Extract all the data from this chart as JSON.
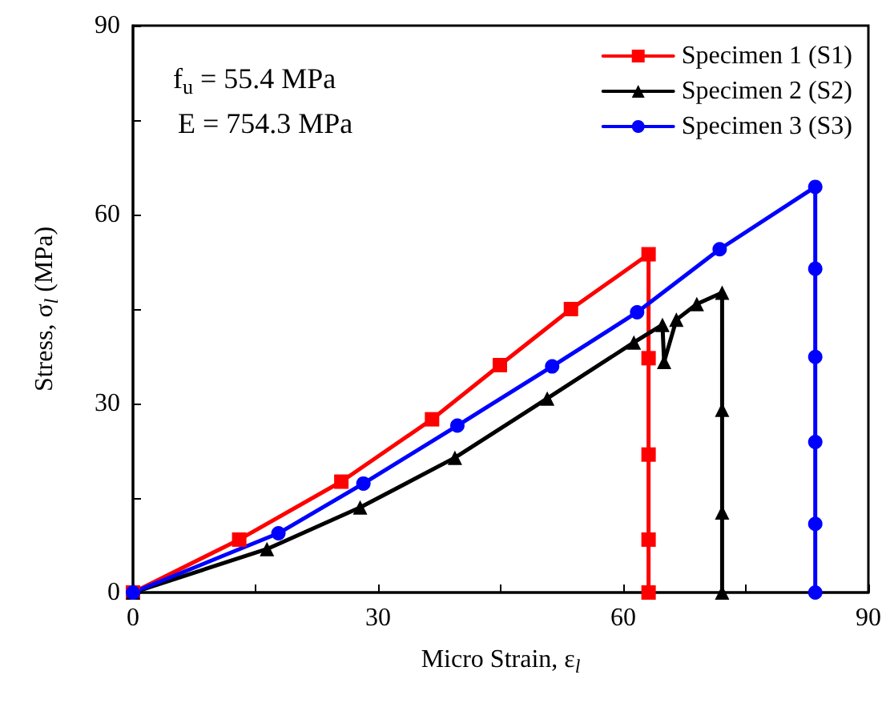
{
  "chart_data": {
    "type": "line",
    "xlabel": "Micro Strain, ε$_{l}$",
    "ylabel": "Stress, σ$_{l}$ (MPa)",
    "annotations": [
      "f$_{u}$ = 55.4 MPa",
      "E = 754.3 MPa"
    ],
    "xlim": [
      0,
      90
    ],
    "ylim": [
      0,
      90
    ],
    "xticks": [
      0,
      {
        "value": 15,
        "label": null
      },
      30,
      {
        "value": 45,
        "label": null
      },
      60,
      {
        "value": 75,
        "label": null
      },
      90
    ],
    "yticks": [
      0,
      {
        "value": 15,
        "label": null
      },
      30,
      {
        "value": 45,
        "label": null
      },
      60,
      {
        "value": 75,
        "label": null
      },
      90
    ],
    "grid": false,
    "legend": "top right",
    "line_style": "solid",
    "series": [
      {
        "name": "Specimen 1 (S1)",
        "color": "#ff0000",
        "marker": "square",
        "x": [
          0,
          13.0,
          25.5,
          36.6,
          44.9,
          53.6,
          63.1,
          63.1,
          63.1,
          63.1,
          63.1
        ],
        "values": [
          0,
          8.4,
          17.6,
          27.5,
          36.1,
          45.0,
          53.7,
          37.2,
          21.9,
          8.4,
          0
        ]
      },
      {
        "name": "Specimen 2 (S2)",
        "color": "#000000",
        "marker": "triangle",
        "x": [
          0,
          16.4,
          27.8,
          39.4,
          50.7,
          61.3,
          64.8,
          65.0,
          66.5,
          69.0,
          72.1,
          72.1,
          72.1,
          72.1
        ],
        "values": [
          0,
          6.9,
          13.5,
          21.4,
          30.8,
          39.7,
          42.5,
          36.6,
          43.3,
          45.8,
          47.6,
          29.0,
          12.7,
          0
        ]
      },
      {
        "name": "Specimen 3 (S3)",
        "color": "#0000ff",
        "marker": "circle",
        "x": [
          0,
          17.8,
          28.2,
          39.7,
          51.3,
          61.7,
          71.8,
          83.5,
          83.5,
          83.5,
          83.5,
          83.5,
          83.5
        ],
        "values": [
          0,
          9.4,
          17.3,
          26.5,
          35.9,
          44.5,
          54.5,
          64.4,
          51.4,
          37.4,
          23.9,
          10.9,
          0
        ]
      }
    ]
  }
}
